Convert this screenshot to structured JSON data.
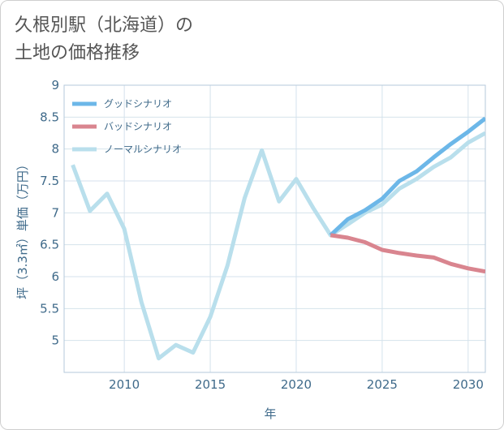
{
  "title": {
    "line1": "久根別駅（北海道）の",
    "line2": "土地の価格推移"
  },
  "chart_data": {
    "type": "line",
    "xlabel": "年",
    "ylabel": "坪（3.3㎡）単価（万円）",
    "xlim": [
      2006.5,
      2031
    ],
    "ylim": [
      4.5,
      9
    ],
    "xticks": [
      2010,
      2015,
      2020,
      2025,
      2030
    ],
    "yticks": [
      5,
      5.5,
      6,
      6.5,
      7,
      7.5,
      8,
      8.5,
      9
    ],
    "grid": true,
    "legend_position": "top-left",
    "series": [
      {
        "name": "ノーマルシナリオ",
        "color": "#b9dfec",
        "x": [
          2007,
          2008,
          2009,
          2010,
          2011,
          2012,
          2013,
          2014,
          2015,
          2016,
          2017,
          2018,
          2019,
          2020,
          2021,
          2022,
          2023,
          2024,
          2025,
          2026,
          2027,
          2028,
          2029,
          2030,
          2031
        ],
        "values": [
          7.75,
          7.03,
          7.3,
          6.75,
          5.6,
          4.72,
          4.93,
          4.81,
          5.37,
          6.17,
          7.23,
          7.98,
          7.18,
          7.53,
          7.07,
          6.65,
          6.82,
          7.0,
          7.13,
          7.38,
          7.53,
          7.72,
          7.87,
          8.1,
          8.25
        ]
      },
      {
        "name": "グッドシナリオ",
        "color": "#6cb7e8",
        "x": [
          2022,
          2023,
          2024,
          2025,
          2026,
          2027,
          2028,
          2029,
          2030,
          2031
        ],
        "values": [
          6.65,
          6.9,
          7.04,
          7.22,
          7.5,
          7.65,
          7.87,
          8.08,
          8.27,
          8.48
        ]
      },
      {
        "name": "バッドシナリオ",
        "color": "#d9858f",
        "x": [
          2022,
          2023,
          2024,
          2025,
          2026,
          2027,
          2028,
          2029,
          2030,
          2031
        ],
        "values": [
          6.65,
          6.61,
          6.54,
          6.42,
          6.37,
          6.33,
          6.3,
          6.2,
          6.13,
          6.08
        ]
      }
    ],
    "legend": [
      {
        "label": "グッドシナリオ",
        "color": "#6cb7e8"
      },
      {
        "label": "バッドシナリオ",
        "color": "#d9858f"
      },
      {
        "label": "ノーマルシナリオ",
        "color": "#b9dfec"
      }
    ]
  }
}
